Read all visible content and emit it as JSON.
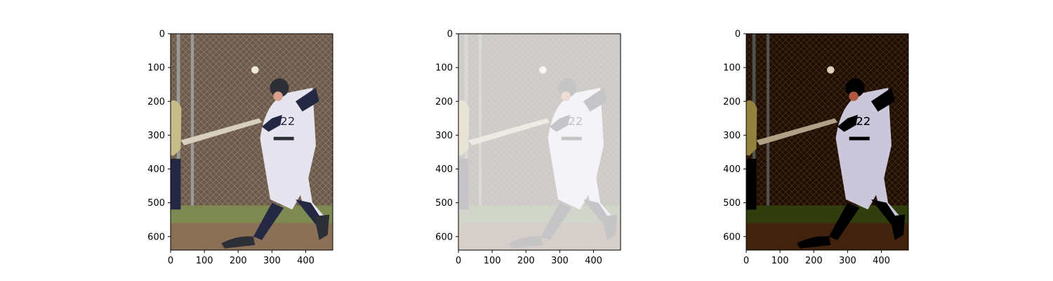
{
  "chart_data": [
    {
      "type": "image",
      "title": "",
      "xlabel": "",
      "ylabel": "",
      "xlim": [
        0,
        480
      ],
      "ylim": [
        640,
        0
      ],
      "xticks": [
        0,
        100,
        200,
        300,
        400
      ],
      "yticks": [
        0,
        100,
        200,
        300,
        400,
        500,
        600
      ],
      "variant": "original",
      "grid": false
    },
    {
      "type": "image",
      "title": "",
      "xlabel": "",
      "ylabel": "",
      "xlim": [
        0,
        480
      ],
      "ylim": [
        640,
        0
      ],
      "xticks": [
        0,
        100,
        200,
        300,
        400
      ],
      "yticks": [
        0,
        100,
        200,
        300,
        400,
        500,
        600
      ],
      "variant": "brightened",
      "grid": false
    },
    {
      "type": "image",
      "title": "",
      "xlabel": "",
      "ylabel": "",
      "xlim": [
        0,
        480
      ],
      "ylim": [
        640,
        0
      ],
      "xticks": [
        0,
        100,
        200,
        300,
        400
      ],
      "yticks": [
        0,
        100,
        200,
        300,
        400,
        500,
        600
      ],
      "variant": "darkened",
      "grid": false
    }
  ],
  "scene": {
    "jersey_number": "22",
    "colors": {
      "fence": "#6e5a4a",
      "fence_post": "#9a9a98",
      "grass": "#7e8a52",
      "dirt": "#8b7058",
      "uniform": "#e6e4ee",
      "navy": "#252843",
      "helmet": "#2c3036",
      "skin": "#d8a08a",
      "spectator": "#c7bd8a",
      "bat": "#d8cfc0",
      "ball": "#eee8dc"
    }
  }
}
